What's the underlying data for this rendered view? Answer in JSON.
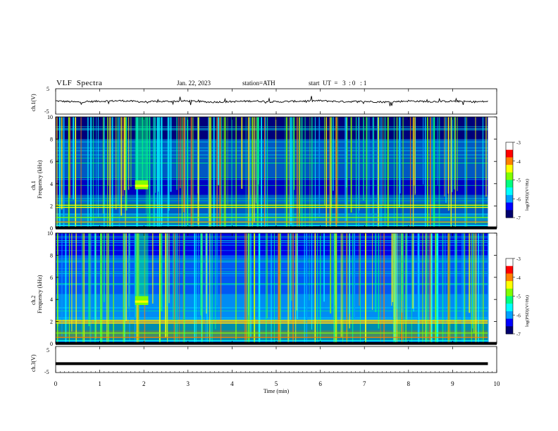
{
  "header": {
    "title": "VLF  Spectra",
    "date": "Jan. 22, 2023",
    "station": "station=ATH",
    "start": "start  UT  =   3  : 0   : 1"
  },
  "chart_data": [
    {
      "type": "line",
      "panel": "ch1-waveform",
      "ylabel": "ch.1(V)",
      "ylim": [
        -5,
        5
      ],
      "yticks": [
        "5",
        "-5"
      ],
      "xlim": [
        0,
        10
      ],
      "note": "noisy waveform centered near 0 V with sferic spikes",
      "x": [
        0,
        0.5,
        1,
        1.5,
        2,
        2.5,
        3,
        3.5,
        4,
        4.5,
        5,
        5.5,
        6,
        6.5,
        7,
        7.5,
        8,
        8.5,
        9,
        9.5,
        9.8
      ],
      "y": [
        0.2,
        -0.3,
        0.1,
        0.3,
        -0.2,
        0.0,
        0.2,
        -0.3,
        -0.1,
        0.2,
        -0.2,
        0.1,
        0.3,
        -0.1,
        0.0,
        -0.3,
        0.2,
        -0.1,
        0.1,
        -0.2,
        0.0
      ]
    },
    {
      "type": "heatmap",
      "panel": "ch1-spectrogram",
      "ylabel": "ch.1\nFrequency (kHz)",
      "ylim": [
        0,
        10
      ],
      "yticks": [
        "0",
        "2",
        "4",
        "6",
        "8",
        "10"
      ],
      "xlim": [
        0,
        10
      ],
      "colorbar": {
        "label": "log(PSD)(V²/Hz)",
        "range": [
          -7,
          -3
        ],
        "ticks": [
          "-3",
          "-4",
          "-5",
          "-6",
          "-7"
        ]
      },
      "bright_patch": {
        "time_min": [
          1.8,
          2.1
        ],
        "freq_khz": [
          3.5,
          4.3
        ]
      }
    },
    {
      "type": "heatmap",
      "panel": "ch2-spectrogram",
      "ylabel": "ch.2\nFrequency (kHz)",
      "ylim": [
        0,
        10
      ],
      "yticks": [
        "0",
        "2",
        "4",
        "6",
        "8",
        "10"
      ],
      "xlim": [
        0,
        10
      ],
      "colorbar": {
        "label": "log(PSD)(V²/Hz)",
        "range": [
          -7,
          -3
        ],
        "ticks": [
          "-3",
          "-4",
          "-5",
          "-6",
          "-7"
        ]
      },
      "bright_patch": {
        "time_min": [
          1.8,
          2.1
        ],
        "freq_khz": [
          3.5,
          4.3
        ]
      }
    },
    {
      "type": "line",
      "panel": "ch3-waveform",
      "ylabel": "ch.3(V)",
      "ylim": [
        -5,
        5
      ],
      "yticks": [
        "5",
        "0",
        "-5"
      ],
      "xlim": [
        0,
        10
      ],
      "xlabel": "Time  (min)",
      "xticks": [
        "0",
        "1",
        "2",
        "3",
        "4",
        "5",
        "6",
        "7",
        "8",
        "9",
        "10"
      ],
      "x": [
        0,
        9.8
      ],
      "y": [
        -2,
        -2
      ]
    }
  ],
  "colors": {
    "colormap": [
      "#00006e",
      "#0000ff",
      "#00a0ff",
      "#00ffff",
      "#00ff80",
      "#80ff00",
      "#ffff00",
      "#ff8000",
      "#ff0000",
      "#ffffff"
    ],
    "background": "#ffffff",
    "axis": "#000000"
  }
}
